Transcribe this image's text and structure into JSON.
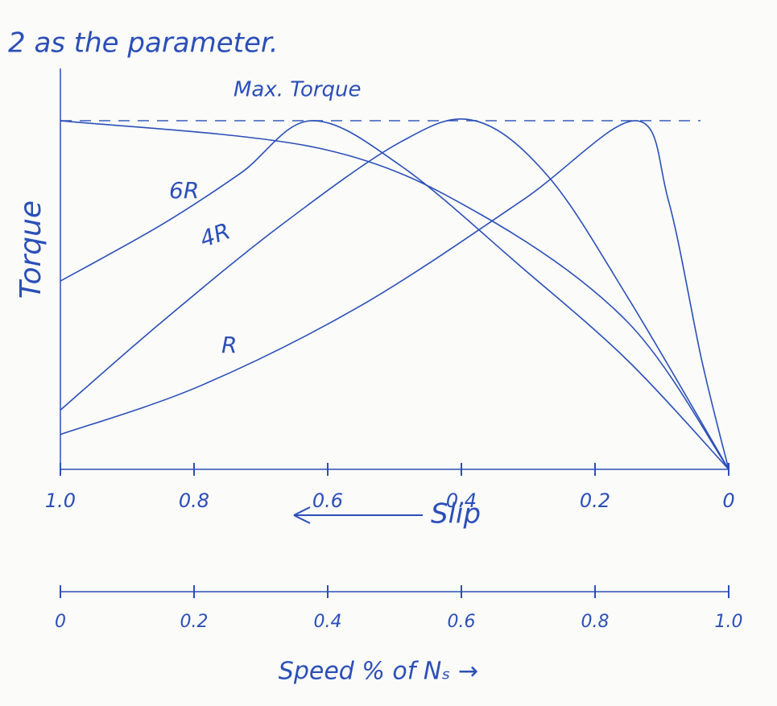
{
  "chart_data": {
    "type": "line",
    "subtitle": "2 as the parameter.",
    "annotation": "Max. Torque",
    "ylabel": "Torque",
    "xlabel": "Slip",
    "x2label": "Speed % of Nₛ →",
    "xlim": [
      1,
      0
    ],
    "xticks": [
      {
        "value": 1,
        "label": "1.0"
      },
      0.8,
      0.6,
      0.4,
      0.2,
      0
    ],
    "x2lim": [
      0,
      1
    ],
    "x2ticks": [
      0,
      0.2,
      0.4,
      0.6,
      0.8,
      {
        "value": 1,
        "label": "1.0"
      }
    ],
    "ylim": [
      0,
      1.15
    ],
    "color": "#2b4fb8",
    "series": [
      {
        "x": [
          1,
          0.61,
          0.37,
          0.15,
          0
        ],
        "values": [
          1.0,
          0.92,
          0.73,
          0.42,
          0
        ]
      },
      {
        "name": "6R",
        "x": [
          1,
          0.85,
          0.73,
          0.625,
          0.49,
          0.31,
          0.15,
          0
        ],
        "values": [
          0.54,
          0.7,
          0.85,
          1.0,
          0.87,
          0.58,
          0.31,
          0
        ]
      },
      {
        "name": "4R",
        "x": [
          1,
          0.85,
          0.67,
          0.49,
          0.38,
          0.27,
          0.15,
          0
        ],
        "values": [
          0.17,
          0.42,
          0.7,
          0.94,
          1.0,
          0.84,
          0.49,
          0
        ]
      },
      {
        "name": "R",
        "x": [
          1,
          0.79,
          0.55,
          0.31,
          0.14,
          0.09,
          0.04,
          0
        ],
        "values": [
          0.1,
          0.24,
          0.47,
          0.77,
          1.0,
          0.77,
          0.31,
          0
        ]
      }
    ]
  }
}
